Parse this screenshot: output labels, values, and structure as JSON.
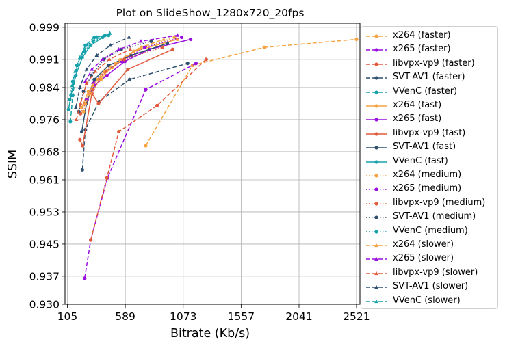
{
  "chart_data": {
    "type": "line",
    "title": "Plot on SlideShow_1280x720_20fps",
    "xlabel": "Bitrate (Kb/s)",
    "ylabel": "SSIM",
    "xlim": [
      85,
      2550
    ],
    "ylim": [
      0.93,
      1.0
    ],
    "xticks": [
      105,
      589,
      1073,
      1557,
      2041,
      2521
    ],
    "xtick_labels": [
      "105",
      "589",
      "1073",
      "1557",
      "2041",
      "2521"
    ],
    "yticks": [
      0.93,
      0.937,
      0.945,
      0.953,
      0.961,
      0.968,
      0.976,
      0.984,
      0.991,
      0.999
    ],
    "ytick_labels": [
      "0.930",
      "0.937",
      "0.945",
      "0.953",
      "0.961",
      "0.968",
      "0.976",
      "0.984",
      "0.991",
      "0.999"
    ],
    "grid": true,
    "legend_position": "outside-right",
    "colors": {
      "x264": "#f4a442",
      "x265": "#9a0fe0",
      "libvpx-vp9": "#e05a3c",
      "SVT-AV1": "#2e4f6e",
      "VVenC": "#17a2ab"
    },
    "series": [
      {
        "name": "x264 (faster)",
        "codec": "x264",
        "style": "dashed",
        "marker": "circle",
        "x": [
          760,
          1150,
          1750,
          2521
        ],
        "y": [
          0.9695,
          0.9895,
          0.994,
          0.996
        ]
      },
      {
        "name": "x265 (faster)",
        "codec": "x265",
        "style": "dashed",
        "marker": "circle",
        "x": [
          250,
          300,
          440,
          760,
          1180
        ],
        "y": [
          0.9365,
          0.946,
          0.9615,
          0.9835,
          0.99
        ]
      },
      {
        "name": "libvpx-vp9 (faster)",
        "codec": "libvpx-vp9",
        "style": "dashed",
        "marker": "circle",
        "x": [
          300,
          435,
          535,
          855,
          1265
        ],
        "y": [
          0.946,
          0.9615,
          0.973,
          0.9795,
          0.991
        ]
      },
      {
        "name": "SVT-AV1 (faster)",
        "codec": "SVT-AV1",
        "style": "dashed",
        "marker": "circle",
        "x": [
          230,
          255,
          370,
          625,
          1110
        ],
        "y": [
          0.9635,
          0.9735,
          0.9805,
          0.986,
          0.99
        ]
      },
      {
        "name": "VVenC (faster)",
        "codec": "VVenC",
        "style": "dashed",
        "marker": "circle",
        "x": [
          130,
          150,
          185,
          255,
          330,
          450
        ],
        "y": [
          0.9755,
          0.982,
          0.9895,
          0.9945,
          0.9965,
          0.997
        ]
      },
      {
        "name": "x264 (fast)",
        "codec": "x264",
        "style": "solid",
        "marker": "circle",
        "x": [
          225,
          280,
          360,
          480,
          660,
          1025
        ],
        "y": [
          0.979,
          0.983,
          0.986,
          0.989,
          0.993,
          0.996
        ]
      },
      {
        "name": "x265 (fast)",
        "codec": "x265",
        "style": "solid",
        "marker": "circle",
        "x": [
          270,
          330,
          435,
          585,
          790,
          1135
        ],
        "y": [
          0.981,
          0.9845,
          0.987,
          0.9905,
          0.9935,
          0.996
        ]
      },
      {
        "name": "libvpx-vp9 (fast)",
        "codec": "libvpx-vp9",
        "style": "solid",
        "marker": "circle",
        "x": [
          210,
          232,
          310,
          365,
          610,
          985
        ],
        "y": [
          0.971,
          0.9695,
          0.9825,
          0.98,
          0.9885,
          0.9935
        ]
      },
      {
        "name": "SVT-AV1 (fast)",
        "codec": "SVT-AV1",
        "style": "solid",
        "marker": "circle",
        "x": [
          225,
          265,
          330,
          450,
          640,
          940
        ],
        "y": [
          0.973,
          0.98,
          0.986,
          0.9895,
          0.992,
          0.995
        ]
      },
      {
        "name": "VVenC (fast)",
        "codec": "VVenC",
        "style": "solid",
        "marker": "circle",
        "x": [
          115,
          135,
          175,
          230,
          300,
          400
        ],
        "y": [
          0.9785,
          0.982,
          0.987,
          0.9915,
          0.9945,
          0.9965
        ]
      },
      {
        "name": "x264 (medium)",
        "codec": "x264",
        "style": "dotted",
        "marker": "circle",
        "x": [
          240,
          295,
          385,
          510,
          700,
          1000
        ],
        "y": [
          0.978,
          0.9825,
          0.986,
          0.99,
          0.9935,
          0.9965
        ]
      },
      {
        "name": "x265 (medium)",
        "codec": "x265",
        "style": "dotted",
        "marker": "circle",
        "x": [
          265,
          320,
          420,
          560,
          750,
          1060
        ],
        "y": [
          0.981,
          0.985,
          0.988,
          0.9905,
          0.994,
          0.9965
        ]
      },
      {
        "name": "libvpx-vp9 (medium)",
        "codec": "libvpx-vp9",
        "style": "dotted",
        "marker": "circle",
        "x": [
          215,
          255,
          320,
          420,
          580,
          900
        ],
        "y": [
          0.9775,
          0.98,
          0.9835,
          0.988,
          0.991,
          0.994
        ]
      },
      {
        "name": "SVT-AV1 (medium)",
        "codec": "SVT-AV1",
        "style": "dotted",
        "marker": "circle",
        "x": [
          200,
          240,
          305,
          410,
          555,
          805
        ],
        "y": [
          0.978,
          0.983,
          0.987,
          0.991,
          0.9935,
          0.9955
        ]
      },
      {
        "name": "VVenC (medium)",
        "codec": "VVenC",
        "style": "dotted",
        "marker": "circle",
        "x": [
          125,
          150,
          185,
          245,
          320,
          420
        ],
        "y": [
          0.981,
          0.9855,
          0.9895,
          0.993,
          0.9955,
          0.997
        ]
      },
      {
        "name": "x264 (slower)",
        "codec": "x264",
        "style": "dashed",
        "marker": "triangle",
        "x": [
          255,
          315,
          410,
          545,
          720,
          910
        ],
        "y": [
          0.98,
          0.9845,
          0.988,
          0.991,
          0.994,
          0.996
        ]
      },
      {
        "name": "x265 (slower)",
        "codec": "x265",
        "style": "dashed",
        "marker": "triangle",
        "x": [
          255,
          310,
          400,
          535,
          720,
          1025
        ],
        "y": [
          0.9855,
          0.9885,
          0.991,
          0.9935,
          0.9955,
          0.997
        ]
      },
      {
        "name": "libvpx-vp9 (slower)",
        "codec": "libvpx-vp9",
        "style": "dashed",
        "marker": "triangle",
        "x": [
          180,
          215,
          265,
          340,
          455,
          630
        ],
        "y": [
          0.976,
          0.98,
          0.985,
          0.988,
          0.991,
          0.9935
        ]
      },
      {
        "name": "SVT-AV1 (slower)",
        "codec": "SVT-AV1",
        "style": "dashed",
        "marker": "triangle",
        "x": [
          175,
          210,
          265,
          350,
          465,
          620
        ],
        "y": [
          0.979,
          0.984,
          0.9885,
          0.992,
          0.9945,
          0.9965
        ]
      },
      {
        "name": "VVenC (slower)",
        "codec": "VVenC",
        "style": "dashed",
        "marker": "triangle",
        "x": [
          145,
          170,
          210,
          270,
          350,
          460
        ],
        "y": [
          0.9845,
          0.988,
          0.9915,
          0.9945,
          0.9965,
          0.9975
        ]
      }
    ]
  }
}
